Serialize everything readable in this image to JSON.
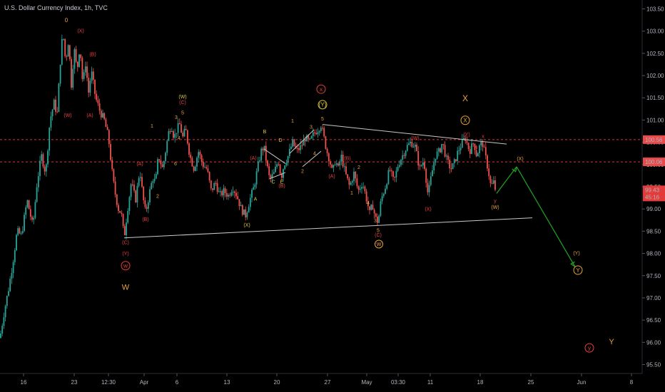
{
  "title": "U.S. Dollar Currency Index, 1h, TVC",
  "colors": {
    "up": "#26a69a",
    "down": "#ef5350",
    "bg": "#000000",
    "red": "#e83f3f",
    "orange": "#e8a33a",
    "yellow": "#d8c93a",
    "green": "#1fa821",
    "axis": "#b2b5be"
  },
  "chart_data": {
    "type": "candlestick",
    "symbol": "U.S. Dollar Currency Index",
    "timeframe": "1h",
    "source": "TVC",
    "ylim": [
      95.3,
      103.7
    ],
    "y_ticks": [
      "95.50",
      "96.00",
      "96.50",
      "97.00",
      "97.50",
      "98.00",
      "98.50",
      "99.00",
      "99.50",
      "100.00",
      "100.50",
      "101.00",
      "101.50",
      "102.00",
      "102.50",
      "103.00",
      "103.50"
    ],
    "x_ticks": [
      "16",
      "23",
      "12:30",
      "Apr",
      "6",
      "13",
      "20",
      "27",
      "May",
      "03:30",
      "11",
      "18",
      "25",
      "Jun",
      "8"
    ],
    "last_price": "99.43",
    "countdown": "45:16",
    "price_labels": [
      {
        "value": "100.56",
        "color": "#e84a4a"
      },
      {
        "value": "100.06",
        "color": "#e84a4a"
      }
    ],
    "horizontal_levels": [
      100.56,
      100.06
    ],
    "grid": false,
    "price_path": [
      [
        0,
        96.1
      ],
      [
        6,
        96.7
      ],
      [
        12,
        97.2
      ],
      [
        18,
        97.8
      ],
      [
        24,
        98.5
      ],
      [
        30,
        98.4
      ],
      [
        38,
        99.2
      ],
      [
        46,
        98.6
      ],
      [
        52,
        99.6
      ],
      [
        58,
        100.2
      ],
      [
        64,
        99.8
      ],
      [
        70,
        101.0
      ],
      [
        76,
        101.4
      ],
      [
        80,
        101.1
      ],
      [
        84,
        102.2
      ],
      [
        88,
        103.0
      ],
      [
        92,
        102.3
      ],
      [
        96,
        102.8
      ],
      [
        100,
        101.8
      ],
      [
        104,
        102.6
      ],
      [
        108,
        102.1
      ],
      [
        112,
        102.7
      ],
      [
        116,
        101.8
      ],
      [
        120,
        102.3
      ],
      [
        124,
        101.6
      ],
      [
        128,
        102.1
      ],
      [
        134,
        101.5
      ],
      [
        140,
        101.2
      ],
      [
        146,
        101.0
      ],
      [
        152,
        100.6
      ],
      [
        158,
        99.7
      ],
      [
        162,
        99.3
      ],
      [
        166,
        99.0
      ],
      [
        170,
        98.9
      ],
      [
        174,
        98.35
      ],
      [
        178,
        98.9
      ],
      [
        184,
        99.6
      ],
      [
        190,
        99.2
      ],
      [
        196,
        99.9
      ],
      [
        200,
        99.3
      ],
      [
        204,
        98.9
      ],
      [
        210,
        99.4
      ],
      [
        214,
        99.7
      ],
      [
        218,
        99.6
      ],
      [
        222,
        100.2
      ],
      [
        228,
        99.9
      ],
      [
        232,
        100.3
      ],
      [
        236,
        100.7
      ],
      [
        240,
        100.9
      ],
      [
        244,
        100.6
      ],
      [
        248,
        100.8
      ],
      [
        252,
        100.9
      ],
      [
        256,
        100.6
      ],
      [
        260,
        100.8
      ],
      [
        266,
        100.2
      ],
      [
        272,
        99.9
      ],
      [
        278,
        100.3
      ],
      [
        284,
        100.0
      ],
      [
        290,
        99.9
      ],
      [
        296,
        99.4
      ],
      [
        302,
        99.6
      ],
      [
        308,
        99.3
      ],
      [
        314,
        99.4
      ],
      [
        320,
        99.3
      ],
      [
        326,
        99.5
      ],
      [
        332,
        99.3
      ],
      [
        338,
        99.0
      ],
      [
        344,
        98.85
      ],
      [
        350,
        99.2
      ],
      [
        356,
        99.5
      ],
      [
        362,
        100.0
      ],
      [
        366,
        100.3
      ],
      [
        370,
        100.4
      ],
      [
        374,
        100.0
      ],
      [
        378,
        99.65
      ],
      [
        384,
        99.8
      ],
      [
        390,
        100.1
      ],
      [
        394,
        99.7
      ],
      [
        398,
        100.0
      ],
      [
        404,
        100.2
      ],
      [
        410,
        100.5
      ],
      [
        416,
        100.3
      ],
      [
        422,
        100.4
      ],
      [
        428,
        100.6
      ],
      [
        434,
        100.5
      ],
      [
        440,
        100.7
      ],
      [
        446,
        100.8
      ],
      [
        450,
        100.9
      ],
      [
        454,
        100.6
      ],
      [
        458,
        100.3
      ],
      [
        462,
        100.1
      ],
      [
        466,
        99.8
      ],
      [
        470,
        100.1
      ],
      [
        474,
        99.9
      ],
      [
        478,
        100.2
      ],
      [
        484,
        99.8
      ],
      [
        490,
        99.5
      ],
      [
        496,
        99.8
      ],
      [
        502,
        99.4
      ],
      [
        508,
        99.6
      ],
      [
        514,
        99.2
      ],
      [
        518,
        98.9
      ],
      [
        522,
        99.1
      ],
      [
        526,
        98.8
      ],
      [
        530,
        98.7
      ],
      [
        534,
        99.2
      ],
      [
        540,
        99.5
      ],
      [
        546,
        99.9
      ],
      [
        552,
        99.6
      ],
      [
        558,
        100.0
      ],
      [
        564,
        100.2
      ],
      [
        570,
        100.4
      ],
      [
        576,
        100.5
      ],
      [
        582,
        100.4
      ],
      [
        588,
        99.9
      ],
      [
        594,
        100.1
      ],
      [
        600,
        99.3
      ],
      [
        604,
        99.7
      ],
      [
        610,
        100.2
      ],
      [
        616,
        100.3
      ],
      [
        620,
        100.5
      ],
      [
        626,
        100.1
      ],
      [
        632,
        99.9
      ],
      [
        636,
        100.0
      ],
      [
        642,
        100.3
      ],
      [
        648,
        100.5
      ],
      [
        652,
        100.6
      ],
      [
        658,
        100.3
      ],
      [
        664,
        100.5
      ],
      [
        668,
        100.2
      ],
      [
        672,
        100.4
      ],
      [
        676,
        100.5
      ],
      [
        680,
        100.2
      ],
      [
        684,
        99.9
      ],
      [
        688,
        99.5
      ],
      [
        692,
        99.6
      ],
      [
        696,
        99.3
      ]
    ],
    "trendlines": [
      {
        "from": [
          174,
          98.35
        ],
        "to": [
          746,
          98.8
        ],
        "color": "#c8c8c8"
      },
      {
        "from": [
          452,
          100.9
        ],
        "to": [
          710,
          100.46
        ],
        "color": "#c8c8c8"
      },
      {
        "from": [
          378,
          99.68
        ],
        "to": [
          400,
          99.82
        ],
        "color": "#c8c8c8"
      },
      {
        "from": [
          370,
          100.35
        ],
        "to": [
          400,
          100.02
        ],
        "color": "#c8c8c8"
      },
      {
        "from": [
          406,
          100.25
        ],
        "to": [
          440,
          100.78
        ],
        "color": "#c8c8c8"
      },
      {
        "from": [
          424,
          99.95
        ],
        "to": [
          450,
          100.3
        ],
        "color": "#c8c8c8"
      }
    ],
    "projection": {
      "color": "#1fa821",
      "points": [
        [
          696,
          99.35
        ],
        [
          724,
          99.95
        ],
        [
          806,
          97.7
        ]
      ]
    },
    "wave_labels": [
      {
        "t": "0",
        "x": 93,
        "y": 103.2,
        "c": "orange",
        "s": 8
      },
      {
        "t": "(X)",
        "x": 113,
        "y": 102.97,
        "c": "red",
        "s": 7
      },
      {
        "t": "(B)",
        "x": 130,
        "y": 102.44,
        "c": "red",
        "s": 7
      },
      {
        "t": "(W)",
        "x": 95,
        "y": 101.07,
        "c": "red",
        "s": 7
      },
      {
        "t": "(A)",
        "x": 126,
        "y": 101.07,
        "c": "red",
        "s": 7
      },
      {
        "t": "(C)",
        "x": 176,
        "y": 98.21,
        "c": "red",
        "s": 7
      },
      {
        "t": "(Y)",
        "x": 176,
        "y": 97.96,
        "c": "red",
        "s": 7
      },
      {
        "t": "w",
        "x": 176,
        "y": 97.68,
        "c": "red",
        "s": 8,
        "circle": true
      },
      {
        "t": "W",
        "x": 176,
        "y": 97.18,
        "c": "orange",
        "s": 11
      },
      {
        "t": "(A)",
        "x": 196,
        "y": 99.98,
        "c": "red",
        "s": 7
      },
      {
        "t": "(B)",
        "x": 204,
        "y": 98.73,
        "c": "red",
        "s": 7
      },
      {
        "t": "1",
        "x": 213,
        "y": 100.83,
        "c": "orange",
        "s": 7
      },
      {
        "t": "2",
        "x": 221,
        "y": 99.25,
        "c": "orange",
        "s": 7
      },
      {
        "t": "(W)",
        "x": 256,
        "y": 101.49,
        "c": "yellow",
        "s": 7
      },
      {
        "t": "(C)",
        "x": 256,
        "y": 101.36,
        "c": "red",
        "s": 7
      },
      {
        "t": "5",
        "x": 256,
        "y": 101.13,
        "c": "orange",
        "s": 7
      },
      {
        "t": "3",
        "x": 247,
        "y": 101.02,
        "c": "orange",
        "s": 7
      },
      {
        "t": "4",
        "x": 251,
        "y": 100.56,
        "c": "orange",
        "s": 7
      },
      {
        "t": "6",
        "x": 246,
        "y": 99.98,
        "c": "orange",
        "s": 7
      },
      {
        "t": "(X)",
        "x": 346,
        "y": 98.6,
        "c": "yellow",
        "s": 7
      },
      {
        "t": "A",
        "x": 358,
        "y": 99.19,
        "c": "yellow",
        "s": 7
      },
      {
        "t": "(A)",
        "x": 355,
        "y": 100.11,
        "c": "red",
        "s": 7
      },
      {
        "t": "B",
        "x": 371,
        "y": 100.7,
        "c": "yellow",
        "s": 7
      },
      {
        "t": "D",
        "x": 393,
        "y": 100.51,
        "c": "yellow",
        "s": 7
      },
      {
        "t": "C",
        "x": 383,
        "y": 99.57,
        "c": "yellow",
        "s": 7
      },
      {
        "t": "E",
        "x": 395,
        "y": 99.57,
        "c": "yellow",
        "s": 7
      },
      {
        "t": "(B)",
        "x": 395,
        "y": 99.48,
        "c": "red",
        "s": 7
      },
      {
        "t": "1",
        "x": 410,
        "y": 100.94,
        "c": "orange",
        "s": 7
      },
      {
        "t": "2",
        "x": 424,
        "y": 99.81,
        "c": "orange",
        "s": 7
      },
      {
        "t": "3",
        "x": 436,
        "y": 100.81,
        "c": "orange",
        "s": 7
      },
      {
        "t": "4",
        "x": 441,
        "y": 100.21,
        "c": "orange",
        "s": 7
      },
      {
        "t": "5",
        "x": 452,
        "y": 100.99,
        "c": "orange",
        "s": 7
      },
      {
        "t": "(Y)",
        "x": 452,
        "y": 101.3,
        "c": "yellow",
        "s": 8,
        "circle": true
      },
      {
        "t": "x",
        "x": 450,
        "y": 101.65,
        "c": "red",
        "s": 8,
        "circle": true
      },
      {
        "t": "(B)",
        "x": 487,
        "y": 100.1,
        "c": "red",
        "s": 7
      },
      {
        "t": "2",
        "x": 503,
        "y": 99.9,
        "c": "orange",
        "s": 7
      },
      {
        "t": "(A)",
        "x": 465,
        "y": 99.7,
        "c": "red",
        "s": 7
      },
      {
        "t": "1",
        "x": 493,
        "y": 99.32,
        "c": "orange",
        "s": 7
      },
      {
        "t": "4",
        "x": 516,
        "y": 99.1,
        "c": "orange",
        "s": 7
      },
      {
        "t": "3",
        "x": 526,
        "y": 98.7,
        "c": "orange",
        "s": 7
      },
      {
        "t": "5",
        "x": 530,
        "y": 98.48,
        "c": "orange",
        "s": 7
      },
      {
        "t": "(C)",
        "x": 530,
        "y": 98.38,
        "c": "red",
        "s": 7
      },
      {
        "t": "W",
        "x": 531,
        "y": 98.17,
        "c": "orange",
        "s": 7,
        "circle": true
      },
      {
        "t": "(W)",
        "x": 582,
        "y": 100.56,
        "c": "red",
        "s": 7
      },
      {
        "t": "(X)",
        "x": 600,
        "y": 98.96,
        "c": "red",
        "s": 7
      },
      {
        "t": "X",
        "x": 652,
        "y": 101.42,
        "c": "orange",
        "s": 12
      },
      {
        "t": "X",
        "x": 652,
        "y": 100.95,
        "c": "orange",
        "s": 8,
        "circle": true
      },
      {
        "t": "(Y)",
        "x": 654,
        "y": 100.64,
        "c": "red",
        "s": 7
      },
      {
        "t": "x",
        "x": 677,
        "y": 100.6,
        "c": "red",
        "s": 7
      },
      {
        "t": "w",
        "x": 667,
        "y": 100.35,
        "c": "red",
        "s": 7
      },
      {
        "t": "(X)",
        "x": 729,
        "y": 100.09,
        "c": "orange",
        "s": 7
      },
      {
        "t": "y",
        "x": 694,
        "y": 99.15,
        "c": "red",
        "s": 7
      },
      {
        "t": "(W)",
        "x": 694,
        "y": 99.0,
        "c": "orange",
        "s": 7
      },
      {
        "t": "(Y)",
        "x": 808,
        "y": 97.97,
        "c": "orange",
        "s": 7
      },
      {
        "t": "Y",
        "x": 810,
        "y": 97.58,
        "c": "orange",
        "s": 8,
        "circle": true
      },
      {
        "t": "y",
        "x": 826,
        "y": 95.83,
        "c": "red",
        "s": 8,
        "circle": true
      },
      {
        "t": "Y",
        "x": 857,
        "y": 95.96,
        "c": "orange",
        "s": 11
      }
    ]
  }
}
